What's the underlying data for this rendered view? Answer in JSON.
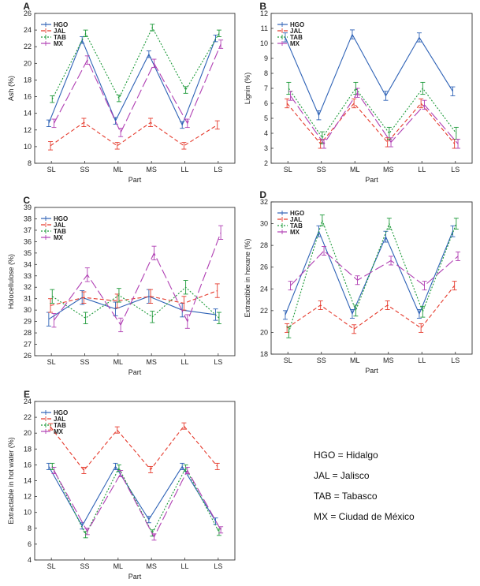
{
  "series_colors": {
    "HGO": "#2e62b6",
    "JAL": "#e53a2c",
    "TAB": "#1e9a3a",
    "MX": "#b03fb3"
  },
  "abbreviations": [
    "HGO = Hidalgo",
    "JAL = Jalisco",
    "TAB = Tabasco",
    "MX = Ciudad de México"
  ],
  "chart_data": [
    {
      "id": "A",
      "panel": "A",
      "type": "line",
      "xlabel": "Part",
      "ylabel": "Ash (%)",
      "categories": [
        "SL",
        "SS",
        "ML",
        "MS",
        "LL",
        "LS"
      ],
      "ylim": [
        8,
        26
      ],
      "yticks": [
        8,
        10,
        12,
        14,
        16,
        18,
        20,
        22,
        24,
        26
      ],
      "legend": [
        "HGO",
        "JAL",
        "TAB",
        "MX"
      ],
      "series": [
        {
          "name": "HGO",
          "values": [
            12.8,
            22.8,
            13.1,
            21.1,
            12.6,
            23.0
          ],
          "err": [
            0.4,
            0.4,
            0.4,
            0.4,
            0.4,
            0.4
          ]
        },
        {
          "name": "JAL",
          "values": [
            10.1,
            12.9,
            10.1,
            12.9,
            10.1,
            12.6
          ],
          "err": [
            0.5,
            0.5,
            0.4,
            0.5,
            0.4,
            0.5
          ]
        },
        {
          "name": "TAB",
          "values": [
            15.7,
            23.6,
            15.8,
            24.3,
            16.8,
            23.6
          ],
          "err": [
            0.4,
            0.4,
            0.4,
            0.4,
            0.4,
            0.4
          ]
        },
        {
          "name": "MX",
          "values": [
            12.8,
            20.4,
            11.7,
            20.0,
            12.8,
            22.3
          ],
          "err": [
            0.5,
            0.5,
            0.5,
            0.5,
            0.5,
            0.5
          ]
        }
      ]
    },
    {
      "id": "B",
      "panel": "B",
      "type": "line",
      "xlabel": "Part",
      "ylabel": "Lignin (%)",
      "categories": [
        "SL",
        "SS",
        "ML",
        "MS",
        "LL",
        "LS"
      ],
      "ylim": [
        2,
        12
      ],
      "yticks": [
        2,
        3,
        4,
        5,
        6,
        7,
        8,
        9,
        10,
        11,
        12
      ],
      "legend": [
        "HGO",
        "JAL",
        "TAB",
        "MX"
      ],
      "series": [
        {
          "name": "HGO",
          "values": [
            10.4,
            5.2,
            10.6,
            6.5,
            10.4,
            6.8
          ],
          "err": [
            0.3,
            0.3,
            0.3,
            0.3,
            0.3,
            0.3
          ]
        },
        {
          "name": "JAL",
          "values": [
            6.0,
            3.3,
            6.0,
            3.4,
            6.0,
            3.3
          ],
          "err": [
            0.3,
            0.3,
            0.3,
            0.3,
            0.3,
            0.3
          ]
        },
        {
          "name": "TAB",
          "values": [
            7.0,
            3.7,
            7.0,
            4.0,
            7.0,
            4.0
          ],
          "err": [
            0.4,
            0.4,
            0.4,
            0.4,
            0.4,
            0.4
          ]
        },
        {
          "name": "MX",
          "values": [
            6.5,
            3.3,
            6.7,
            3.4,
            5.9,
            3.3
          ],
          "err": [
            0.3,
            0.3,
            0.3,
            0.3,
            0.3,
            0.3
          ]
        }
      ]
    },
    {
      "id": "C",
      "panel": "C",
      "type": "line",
      "xlabel": "Part",
      "ylabel": "Holocellulose (%)",
      "categories": [
        "SL",
        "SS",
        "ML",
        "MS",
        "LL",
        "LS"
      ],
      "ylim": [
        26,
        39
      ],
      "yticks": [
        26,
        27,
        28,
        29,
        30,
        31,
        32,
        33,
        34,
        35,
        36,
        37,
        38,
        39
      ],
      "legend": [
        "HGO",
        "JAL",
        "TAB",
        "MX"
      ],
      "series": [
        {
          "name": "HGO",
          "values": [
            29.2,
            31.1,
            30.1,
            31.2,
            30.0,
            29.6
          ],
          "err": [
            0.6,
            0.6,
            0.6,
            0.6,
            0.6,
            0.5
          ]
        },
        {
          "name": "JAL",
          "values": [
            30.4,
            31.1,
            30.8,
            31.2,
            30.6,
            31.7
          ],
          "err": [
            0.6,
            0.5,
            0.6,
            0.6,
            0.6,
            0.6
          ]
        },
        {
          "name": "TAB",
          "values": [
            31.2,
            29.3,
            31.3,
            29.4,
            32.0,
            29.3
          ],
          "err": [
            0.6,
            0.5,
            0.6,
            0.5,
            0.6,
            0.5
          ]
        },
        {
          "name": "MX",
          "values": [
            29.1,
            33.1,
            28.7,
            35.0,
            29.0,
            36.8
          ],
          "err": [
            0.6,
            0.6,
            0.6,
            0.6,
            0.6,
            0.6
          ]
        }
      ]
    },
    {
      "id": "D",
      "panel": "D",
      "type": "line",
      "xlabel": "Part",
      "ylabel": "Extractible in hexane (%)",
      "categories": [
        "SL",
        "SS",
        "ML",
        "MS",
        "LL",
        "LS"
      ],
      "ylim": [
        18,
        32
      ],
      "yticks": [
        18,
        20,
        22,
        24,
        26,
        28,
        30,
        32
      ],
      "legend": [
        "HGO",
        "JAL",
        "TAB",
        "MX"
      ],
      "series": [
        {
          "name": "HGO",
          "values": [
            21.6,
            29.3,
            21.7,
            28.8,
            21.7,
            29.3
          ],
          "err": [
            0.4,
            0.5,
            0.4,
            0.5,
            0.4,
            0.5
          ]
        },
        {
          "name": "JAL",
          "values": [
            20.4,
            22.5,
            20.3,
            22.5,
            20.4,
            24.3
          ],
          "err": [
            0.4,
            0.4,
            0.4,
            0.4,
            0.4,
            0.4
          ]
        },
        {
          "name": "TAB",
          "values": [
            20.0,
            30.3,
            22.0,
            30.0,
            21.9,
            30.0
          ],
          "err": [
            0.5,
            0.5,
            0.5,
            0.5,
            0.5,
            0.5
          ]
        },
        {
          "name": "MX",
          "values": [
            24.3,
            27.5,
            24.8,
            26.6,
            24.3,
            27.0
          ],
          "err": [
            0.4,
            0.4,
            0.4,
            0.4,
            0.4,
            0.4
          ]
        }
      ]
    },
    {
      "id": "E",
      "panel": "E",
      "type": "line",
      "xlabel": "Part",
      "ylabel": "Extractable in hot water (%)",
      "categories": [
        "SL",
        "SS",
        "ML",
        "MS",
        "LL",
        "LS"
      ],
      "ylim": [
        4,
        24
      ],
      "yticks": [
        4,
        6,
        8,
        10,
        12,
        14,
        16,
        18,
        20,
        22,
        24
      ],
      "legend": [
        "HGO",
        "JAL",
        "TAB",
        "MX"
      ],
      "series": [
        {
          "name": "HGO",
          "values": [
            15.8,
            8.3,
            15.8,
            9.1,
            15.8,
            8.9
          ],
          "err": [
            0.4,
            0.4,
            0.4,
            0.4,
            0.4,
            0.4
          ]
        },
        {
          "name": "JAL",
          "values": [
            20.8,
            15.3,
            20.4,
            15.4,
            20.9,
            15.8
          ],
          "err": [
            0.4,
            0.4,
            0.4,
            0.4,
            0.4,
            0.4
          ]
        },
        {
          "name": "TAB",
          "values": [
            15.8,
            7.2,
            15.6,
            7.4,
            15.6,
            7.5
          ],
          "err": [
            0.4,
            0.4,
            0.4,
            0.4,
            0.4,
            0.4
          ]
        },
        {
          "name": "MX",
          "values": [
            15.3,
            7.6,
            14.9,
            6.9,
            15.3,
            7.8
          ],
          "err": [
            0.4,
            0.4,
            0.4,
            0.4,
            0.4,
            0.4
          ]
        }
      ]
    }
  ]
}
